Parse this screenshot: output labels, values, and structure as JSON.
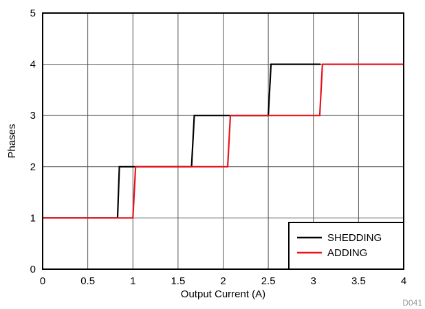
{
  "chart_data": {
    "type": "line",
    "xlabel": "Output Current (A)",
    "ylabel": "Phases",
    "xlim": [
      0,
      4
    ],
    "ylim": [
      0,
      5
    ],
    "x_ticks": [
      "0",
      "0.5",
      "1",
      "1.5",
      "2",
      "2.5",
      "3",
      "3.5",
      "4"
    ],
    "y_ticks": [
      "0",
      "1",
      "2",
      "3",
      "4",
      "5"
    ],
    "grid": true,
    "legend_position": "bottom-right",
    "figure_code": "D041",
    "series": [
      {
        "name": "SHEDDING",
        "color": "#000000",
        "points": [
          [
            0,
            1
          ],
          [
            0.83,
            1
          ],
          [
            0.85,
            2
          ],
          [
            1.65,
            2
          ],
          [
            1.68,
            3
          ],
          [
            2.5,
            3
          ],
          [
            2.53,
            4
          ],
          [
            3.08,
            4
          ]
        ]
      },
      {
        "name": "ADDING",
        "color": "#e8141c",
        "points": [
          [
            0,
            1
          ],
          [
            1.0,
            1
          ],
          [
            1.03,
            2
          ],
          [
            2.05,
            2
          ],
          [
            2.08,
            3
          ],
          [
            3.07,
            3
          ],
          [
            3.1,
            4
          ],
          [
            4,
            4
          ]
        ]
      }
    ]
  }
}
